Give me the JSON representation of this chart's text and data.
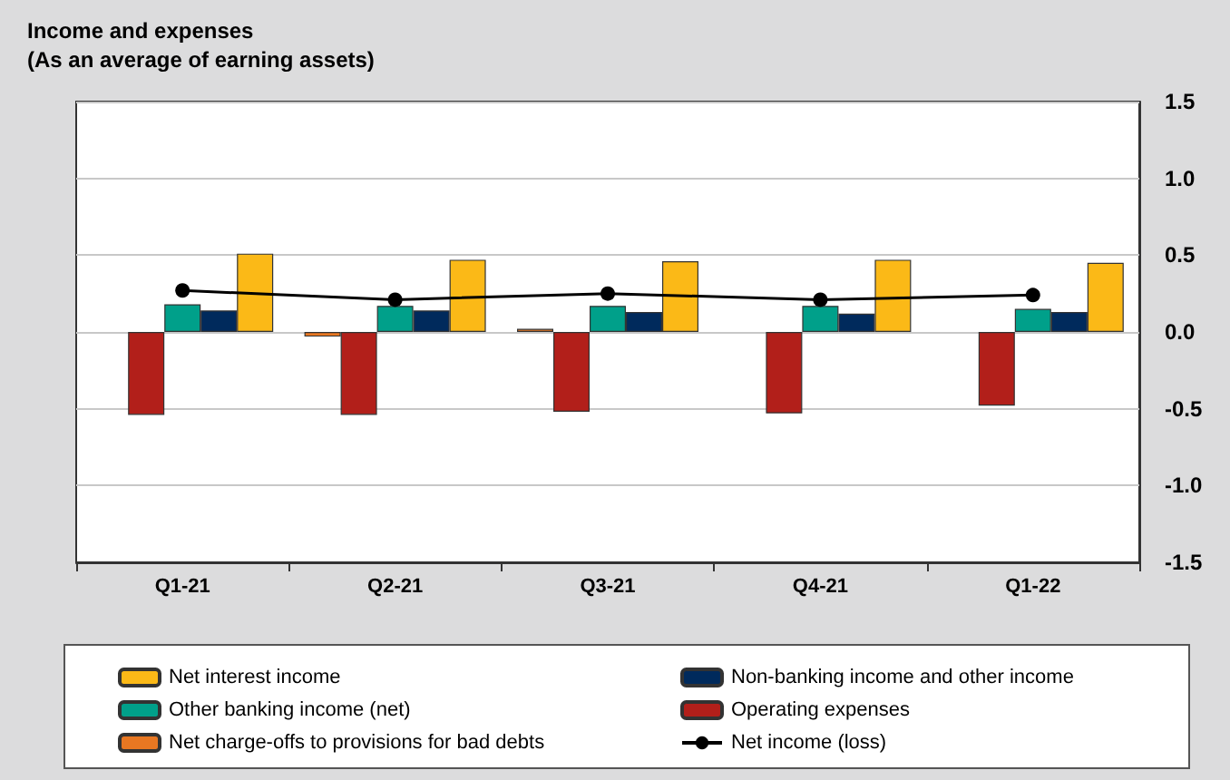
{
  "chart_data": {
    "type": "bar",
    "title": "Income and expenses",
    "subtitle": "(As an average of earning assets)",
    "categories": [
      "Q1-21",
      "Q2-21",
      "Q3-21",
      "Q4-21",
      "Q1-22"
    ],
    "series": [
      {
        "name": "Net interest income",
        "color": "#fbb917",
        "values": [
          0.51,
          0.47,
          0.46,
          0.47,
          0.45
        ]
      },
      {
        "name": "Non-banking income and other income",
        "color": "#002a5c",
        "values": [
          0.14,
          0.14,
          0.13,
          0.12,
          0.13
        ]
      },
      {
        "name": "Other banking income (net)",
        "color": "#00a08a",
        "values": [
          0.18,
          0.17,
          0.17,
          0.17,
          0.15
        ]
      },
      {
        "name": "Operating expenses",
        "color": "#b21f1a",
        "values": [
          -0.54,
          -0.54,
          -0.52,
          -0.53,
          -0.48
        ]
      },
      {
        "name": "Net charge-offs to provisions for bad debts",
        "color": "#e87722",
        "values": [
          null,
          -0.03,
          0.02,
          null,
          null
        ]
      },
      {
        "name": "Net income (loss)",
        "type": "line",
        "color": "#000000",
        "values": [
          0.27,
          0.21,
          0.25,
          0.21,
          0.24
        ]
      }
    ],
    "ylim": [
      -1.5,
      1.5
    ],
    "yticks": [
      {
        "value": -1.5,
        "label": "-1.5"
      },
      {
        "value": -1,
        "label": "-1.0"
      },
      {
        "value": -0.5,
        "label": "-0.5"
      },
      {
        "value": 0,
        "label": "0.0"
      },
      {
        "value": 0.5,
        "label": "0.5"
      },
      {
        "value": 1,
        "label": "1.0"
      },
      {
        "value": 1.5,
        "label": "1.5"
      }
    ],
    "grid": "y",
    "legend": "bottom",
    "marker": "circle",
    "line_style": "solid"
  }
}
